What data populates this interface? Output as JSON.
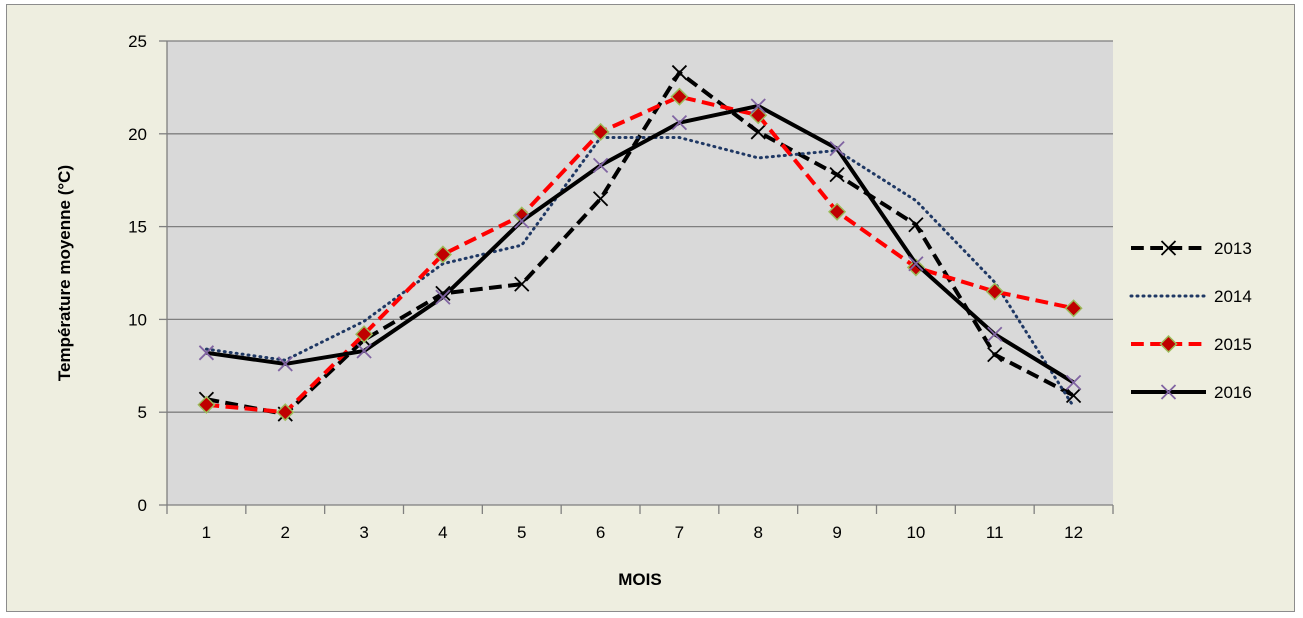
{
  "chart_data": {
    "type": "line",
    "title": "",
    "xlabel": "MOIS",
    "ylabel": "Température moyenne (°C)",
    "categories": [
      "1",
      "2",
      "3",
      "4",
      "5",
      "6",
      "7",
      "8",
      "9",
      "10",
      "11",
      "12"
    ],
    "ylim": [
      0,
      25
    ],
    "yticks": [
      "0",
      "5",
      "10",
      "15",
      "20",
      "25"
    ],
    "grid": true,
    "legend_position": "right",
    "plot_background": "#d9d9d9",
    "chart_background": "#eeeee0",
    "series": [
      {
        "name": "2013",
        "values": [
          5.7,
          4.9,
          8.9,
          11.4,
          11.9,
          16.5,
          23.3,
          20.1,
          17.8,
          15.1,
          8.1,
          5.9
        ],
        "color": "#000000",
        "dash": "dashed",
        "marker": "x"
      },
      {
        "name": "2014",
        "values": [
          8.4,
          7.8,
          9.9,
          13.0,
          14.0,
          19.8,
          19.8,
          18.7,
          19.1,
          16.4,
          12.0,
          5.3
        ],
        "color": "#1f3864",
        "dash": "dotted",
        "marker": "none"
      },
      {
        "name": "2015",
        "values": [
          5.4,
          5.0,
          9.2,
          13.5,
          15.6,
          20.1,
          22.0,
          21.0,
          15.8,
          12.8,
          11.5,
          10.6
        ],
        "color": "#ff0000",
        "dash": "dashed",
        "marker": "diamond"
      },
      {
        "name": "2016",
        "values": [
          8.2,
          7.6,
          8.3,
          11.2,
          15.3,
          18.3,
          20.6,
          21.5,
          19.2,
          13.0,
          9.2,
          6.6
        ],
        "color": "#000000",
        "dash": "solid",
        "marker": "x"
      }
    ]
  }
}
